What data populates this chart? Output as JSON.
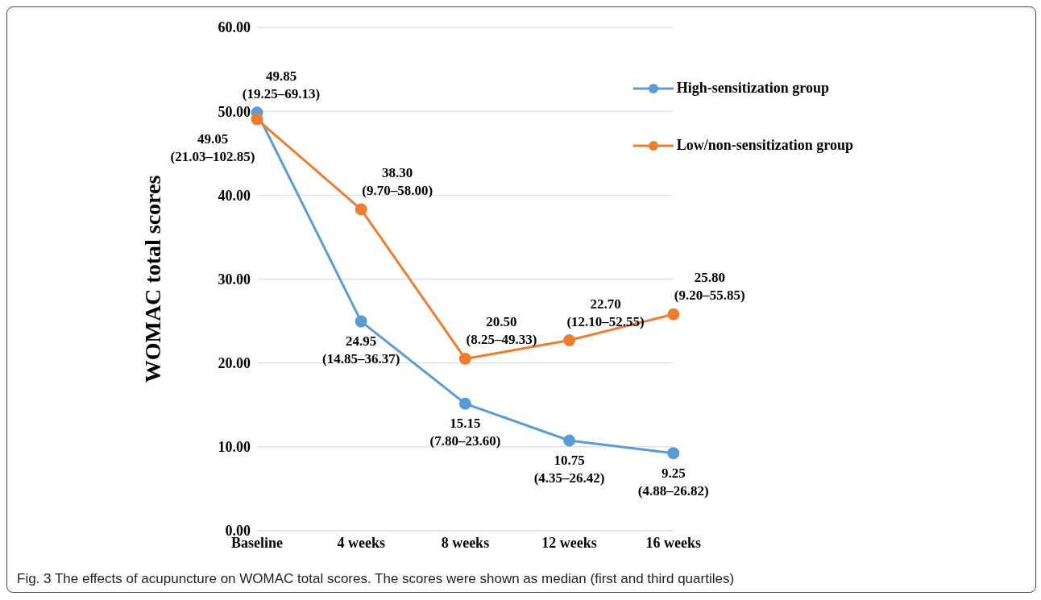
{
  "chart_data": {
    "type": "line",
    "ylabel": "WOMAC total scores",
    "categories": [
      "Baseline",
      "4 weeks",
      "8 weeks",
      "12 weeks",
      "16 weeks"
    ],
    "series": [
      {
        "name": "High-sensitization group",
        "color": "#5b9bd5",
        "values": [
          49.85,
          24.95,
          15.15,
          10.75,
          9.25
        ],
        "value_labels": [
          "49.85\n(19.25–69.13)",
          "24.95\n(14.85–36.37)",
          "15.15\n(7.80–23.60)",
          "10.75\n(4.35–26.42)",
          "9.25\n(4.88–26.82)"
        ]
      },
      {
        "name": "Low/non-sensitization group",
        "color": "#ed7d31",
        "values": [
          49.05,
          38.3,
          20.5,
          22.7,
          25.8
        ],
        "value_labels": [
          "49.05\n(21.03–102.85)",
          "38.30\n(9.70–58.00)",
          "20.50\n(8.25–49.33)",
          "22.70\n(12.10–52.55)",
          "25.80\n(9.20–55.85)"
        ]
      }
    ],
    "ylim": [
      0,
      60
    ],
    "yticks": [
      {
        "value": 0,
        "label": "0.00"
      },
      {
        "value": 10,
        "label": "10.00"
      },
      {
        "value": 20,
        "label": "20.00"
      },
      {
        "value": 30,
        "label": "30.00"
      },
      {
        "value": 40,
        "label": "40.00"
      },
      {
        "value": 50,
        "label": "50.00"
      },
      {
        "value": 60,
        "label": "60.00"
      }
    ],
    "grid": "y",
    "legend": "top right",
    "marker": "circle",
    "line_style": "solid",
    "annotations": [
      "Fig. 3 The effects of acupuncture on WOMAC total scores. The scores were shown as median (first and third quartiles)"
    ]
  }
}
